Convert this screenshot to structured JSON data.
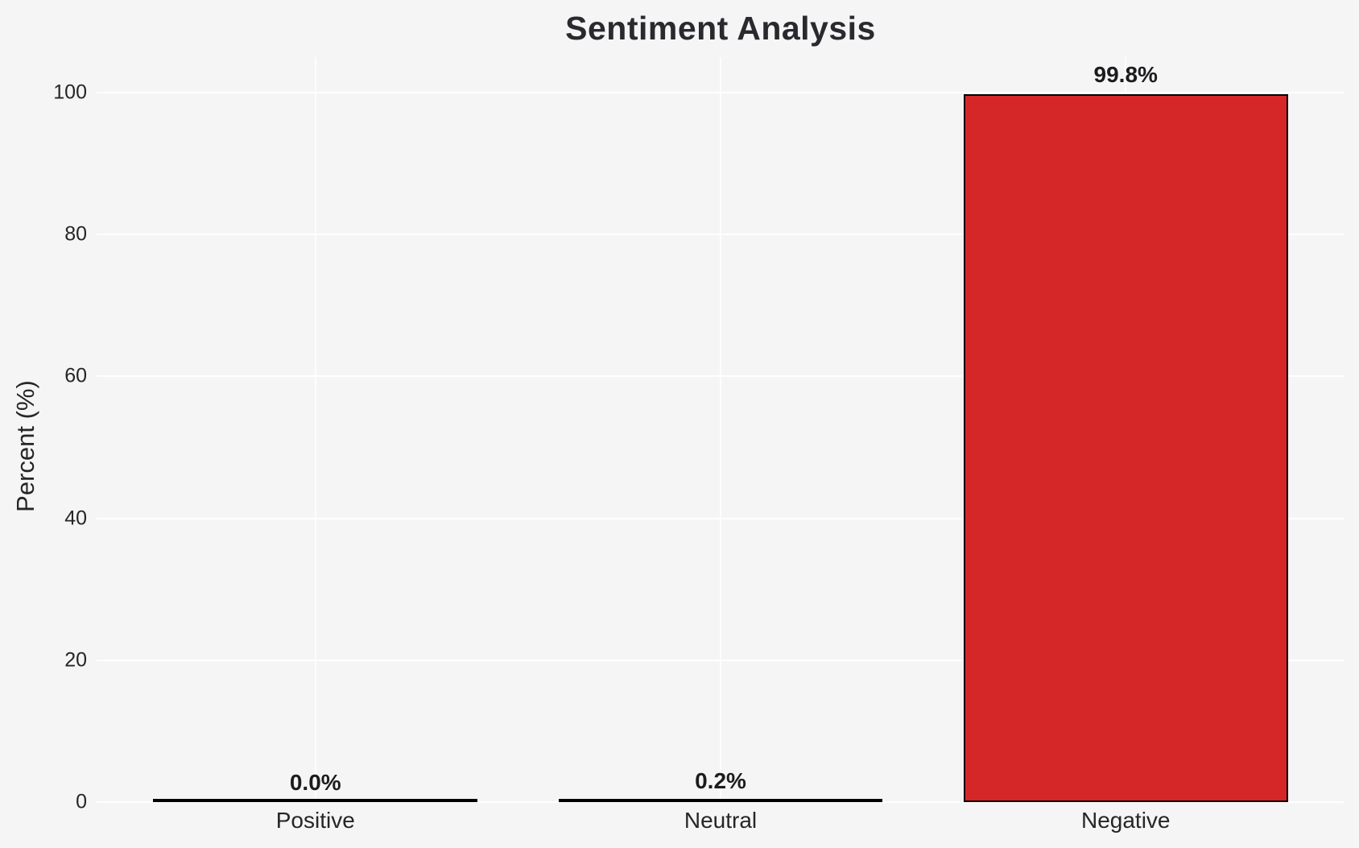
{
  "chart_data": {
    "type": "bar",
    "title": "Sentiment Analysis",
    "xlabel": "",
    "ylabel": "Percent (%)",
    "categories": [
      "Positive",
      "Neutral",
      "Negative"
    ],
    "values": [
      0.0,
      0.2,
      99.8
    ],
    "bar_labels": [
      "0.0%",
      "0.2%",
      "99.8%"
    ],
    "yticks": [
      0,
      20,
      40,
      60,
      80,
      100
    ],
    "ylim": [
      0,
      105
    ],
    "grid": "on",
    "legend": "none",
    "colors": {
      "bar_fill": "#d62728",
      "bar_edge": "#000000",
      "background": "#f5f5f6",
      "gridline": "#ffffff",
      "text": "#262626"
    }
  }
}
